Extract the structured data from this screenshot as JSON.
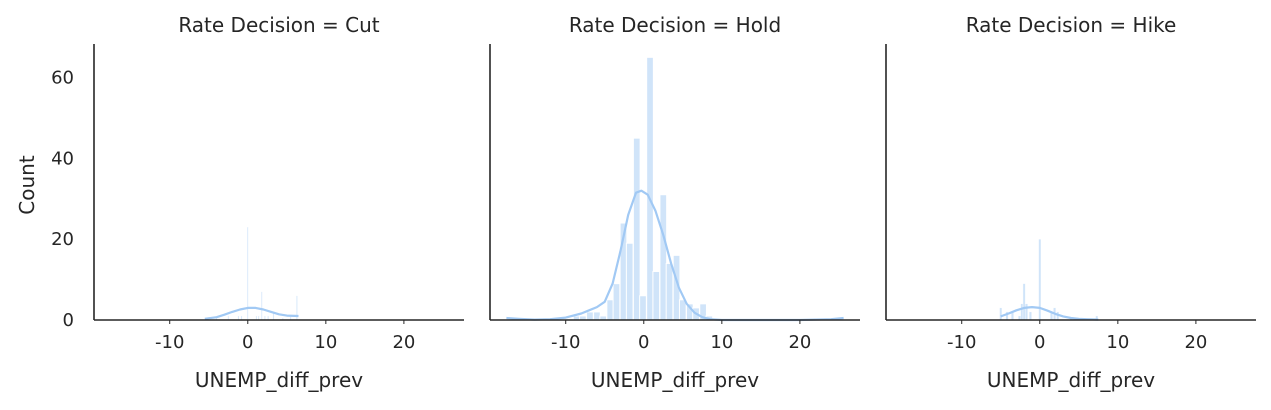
{
  "chart_data": {
    "type": "bar",
    "subtype": "histogram-with-kde-facets",
    "ylabel": "Count",
    "xlim": [
      -19.7,
      27.7
    ],
    "ylim": [
      0,
      68.3
    ],
    "xticks": [
      -10,
      0,
      10,
      20
    ],
    "xtick_labels": [
      "-10",
      "0",
      "10",
      "20"
    ],
    "yticks": [
      0,
      20,
      40,
      60
    ],
    "ytick_labels": [
      "0",
      "20",
      "40",
      "60"
    ],
    "grid": false,
    "colors": {
      "bar": "#a1c9f4",
      "kde": "#a1c9f4",
      "axis": "#262626"
    },
    "panels": [
      {
        "title": "Rate Decision = Cut",
        "xlabel": "UNEMP_diff_prev",
        "bin_width": 0.14,
        "bins": [
          {
            "x": -4,
            "count": 0.5
          },
          {
            "x": -2.5,
            "count": 1
          },
          {
            "x": -1.2,
            "count": 1
          },
          {
            "x": -0.8,
            "count": 1
          },
          {
            "x": 0,
            "count": 23
          },
          {
            "x": 1.1,
            "count": 1
          },
          {
            "x": 1.4,
            "count": 1
          },
          {
            "x": 1.8,
            "count": 7
          },
          {
            "x": 2.2,
            "count": 1
          },
          {
            "x": 2.6,
            "count": 1
          },
          {
            "x": 3.3,
            "count": 2
          },
          {
            "x": 4.5,
            "count": 0.5
          },
          {
            "x": 5.5,
            "count": 1
          },
          {
            "x": 6.3,
            "count": 6
          }
        ],
        "kde": [
          [
            -5.5,
            0.3
          ],
          [
            -4,
            0.7
          ],
          [
            -3,
            1.3
          ],
          [
            -2,
            2
          ],
          [
            -1,
            2.6
          ],
          [
            0,
            3
          ],
          [
            1,
            3
          ],
          [
            2,
            2.6
          ],
          [
            3,
            2
          ],
          [
            4,
            1.4
          ],
          [
            5,
            1.1
          ],
          [
            6.5,
            1
          ]
        ]
      },
      {
        "title": "Rate Decision = Hold",
        "xlabel": "UNEMP_diff_prev",
        "bin_width": 0.86,
        "bins": [
          {
            "x": -9.5,
            "count": 0.3
          },
          {
            "x": -8.6,
            "count": 1
          },
          {
            "x": -7.8,
            "count": 1
          },
          {
            "x": -6.9,
            "count": 2
          },
          {
            "x": -6.0,
            "count": 2
          },
          {
            "x": -5.2,
            "count": 1
          },
          {
            "x": -4.3,
            "count": 5
          },
          {
            "x": -3.5,
            "count": 9
          },
          {
            "x": -2.6,
            "count": 24
          },
          {
            "x": -1.8,
            "count": 19
          },
          {
            "x": -0.9,
            "count": 45
          },
          {
            "x": -0.1,
            "count": 6
          },
          {
            "x": 0.8,
            "count": 65
          },
          {
            "x": 1.6,
            "count": 12
          },
          {
            "x": 2.5,
            "count": 31
          },
          {
            "x": 3.3,
            "count": 14
          },
          {
            "x": 4.2,
            "count": 16
          },
          {
            "x": 5.0,
            "count": 5
          },
          {
            "x": 5.9,
            "count": 4
          },
          {
            "x": 6.7,
            "count": 3
          },
          {
            "x": 7.6,
            "count": 4
          },
          {
            "x": 8.4,
            "count": 1
          }
        ],
        "kde": [
          [
            -17.6,
            0.5
          ],
          [
            -16,
            0.3
          ],
          [
            -14,
            0.1
          ],
          [
            -12,
            0.2
          ],
          [
            -10,
            0.6
          ],
          [
            -8,
            1.6
          ],
          [
            -7,
            2.4
          ],
          [
            -6,
            3.2
          ],
          [
            -5,
            4.5
          ],
          [
            -4,
            9
          ],
          [
            -3,
            17
          ],
          [
            -2,
            26
          ],
          [
            -1,
            31.5
          ],
          [
            -0.3,
            32
          ],
          [
            0.5,
            31
          ],
          [
            1.5,
            27
          ],
          [
            2.5,
            21
          ],
          [
            3.5,
            14
          ],
          [
            4.5,
            8
          ],
          [
            5.5,
            4
          ],
          [
            6.5,
            1.8
          ],
          [
            7.5,
            0.7
          ],
          [
            8.5,
            0.2
          ],
          [
            10,
            0
          ],
          [
            15,
            0
          ],
          [
            20,
            0
          ],
          [
            24,
            0.2
          ],
          [
            25.6,
            0.5
          ]
        ]
      },
      {
        "title": "Rate Decision = Hike",
        "xlabel": "UNEMP_diff_prev",
        "bin_width": 0.3,
        "bins": [
          {
            "x": -5,
            "count": 3
          },
          {
            "x": -4.2,
            "count": 2
          },
          {
            "x": -3.5,
            "count": 2
          },
          {
            "x": -2.6,
            "count": 1
          },
          {
            "x": -2.3,
            "count": 4
          },
          {
            "x": -2,
            "count": 9
          },
          {
            "x": -1.7,
            "count": 4
          },
          {
            "x": -1.2,
            "count": 2
          },
          {
            "x": 0,
            "count": 20
          },
          {
            "x": 1.5,
            "count": 2
          },
          {
            "x": 1.9,
            "count": 3
          },
          {
            "x": 2.3,
            "count": 2
          },
          {
            "x": 4,
            "count": 0.5
          },
          {
            "x": 7.3,
            "count": 1
          }
        ],
        "kde": [
          [
            -5,
            0.9
          ],
          [
            -4,
            1.6
          ],
          [
            -3,
            2.4
          ],
          [
            -2,
            3
          ],
          [
            -1,
            3.2
          ],
          [
            0,
            3
          ],
          [
            1,
            2.3
          ],
          [
            2,
            1.5
          ],
          [
            3,
            0.9
          ],
          [
            4,
            0.5
          ],
          [
            5,
            0.3
          ],
          [
            6,
            0.2
          ],
          [
            7.5,
            0.1
          ]
        ]
      }
    ]
  }
}
